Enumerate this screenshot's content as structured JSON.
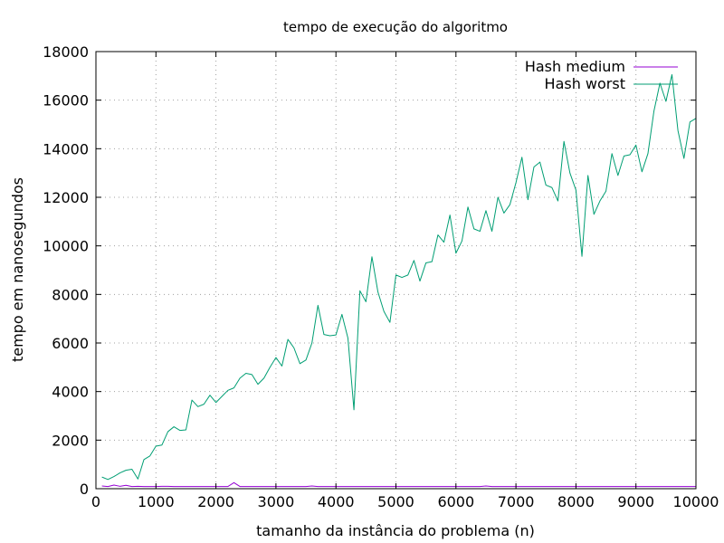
{
  "chart_data": {
    "type": "line",
    "title": "tempo de execução do algoritmo",
    "xlabel": "tamanho da instância do problema (n)",
    "ylabel": "tempo em nanosegundos",
    "xlim": [
      0,
      10000
    ],
    "ylim": [
      0,
      18000
    ],
    "xticks": [
      "0",
      "1000",
      "2000",
      "3000",
      "4000",
      "5000",
      "6000",
      "7000",
      "8000",
      "9000",
      "10000"
    ],
    "yticks": [
      "0",
      "2000",
      "4000",
      "6000",
      "8000",
      "10000",
      "12000",
      "14000",
      "16000",
      "18000"
    ],
    "grid": true,
    "legend_position": "top-right",
    "x": [
      100,
      200,
      300,
      400,
      500,
      600,
      700,
      800,
      900,
      1000,
      1100,
      1200,
      1300,
      1400,
      1500,
      1600,
      1700,
      1800,
      1900,
      2000,
      2100,
      2200,
      2300,
      2400,
      2500,
      2600,
      2700,
      2800,
      2900,
      3000,
      3100,
      3200,
      3300,
      3400,
      3500,
      3600,
      3700,
      3800,
      3900,
      4000,
      4100,
      4200,
      4300,
      4400,
      4500,
      4600,
      4700,
      4800,
      4900,
      5000,
      5100,
      5200,
      5300,
      5400,
      5500,
      5600,
      5700,
      5800,
      5900,
      6000,
      6100,
      6200,
      6300,
      6400,
      6500,
      6600,
      6700,
      6800,
      6900,
      7000,
      7100,
      7200,
      7300,
      7400,
      7500,
      7600,
      7700,
      7800,
      7900,
      8000,
      8100,
      8200,
      8300,
      8400,
      8500,
      8600,
      8700,
      8800,
      8900,
      9000,
      9100,
      9200,
      9300,
      9400,
      9500,
      9600,
      9700,
      9800,
      9900,
      10000
    ],
    "series": [
      {
        "name": "Hash medium",
        "color": "#9400d3",
        "values": [
          110,
          90,
          150,
          100,
          140,
          90,
          100,
          90,
          90,
          90,
          100,
          100,
          90,
          90,
          90,
          90,
          90,
          90,
          90,
          90,
          90,
          90,
          250,
          90,
          90,
          90,
          90,
          90,
          90,
          90,
          90,
          90,
          90,
          90,
          90,
          110,
          90,
          90,
          90,
          90,
          90,
          90,
          90,
          90,
          90,
          90,
          90,
          90,
          90,
          90,
          90,
          90,
          90,
          90,
          90,
          90,
          90,
          90,
          90,
          90,
          90,
          90,
          90,
          90,
          110,
          90,
          90,
          90,
          90,
          90,
          90,
          90,
          90,
          90,
          90,
          90,
          90,
          90,
          90,
          90,
          90,
          90,
          90,
          90,
          90,
          90,
          90,
          90,
          90,
          90,
          90,
          90,
          90,
          90,
          90,
          90,
          90,
          90,
          90,
          90
        ]
      },
      {
        "name": "Hash worst",
        "color": "#009e73",
        "values": [
          480,
          380,
          500,
          650,
          760,
          800,
          400,
          1200,
          1350,
          1750,
          1800,
          2350,
          2550,
          2400,
          2420,
          3650,
          3380,
          3480,
          3850,
          3550,
          3800,
          4050,
          4150,
          4550,
          4750,
          4700,
          4300,
          4550,
          5000,
          5400,
          5050,
          6150,
          5800,
          5150,
          5300,
          6000,
          7550,
          6350,
          6300,
          6330,
          7180,
          6200,
          3250,
          8150,
          7700,
          9550,
          8100,
          7300,
          6850,
          8800,
          8700,
          8800,
          9400,
          8550,
          9300,
          9350,
          10450,
          10150,
          11270,
          9700,
          10200,
          11600,
          10700,
          10600,
          11450,
          10600,
          12000,
          11350,
          11700,
          12600,
          13650,
          11900,
          13250,
          13450,
          12500,
          12400,
          11850,
          14300,
          13000,
          12300,
          9570,
          12900,
          11300,
          11850,
          12250,
          13800,
          12900,
          13700,
          13750,
          14150,
          13050,
          13800,
          15550,
          16700,
          15950,
          17050,
          14750,
          13600,
          15100,
          15250
        ]
      }
    ]
  }
}
